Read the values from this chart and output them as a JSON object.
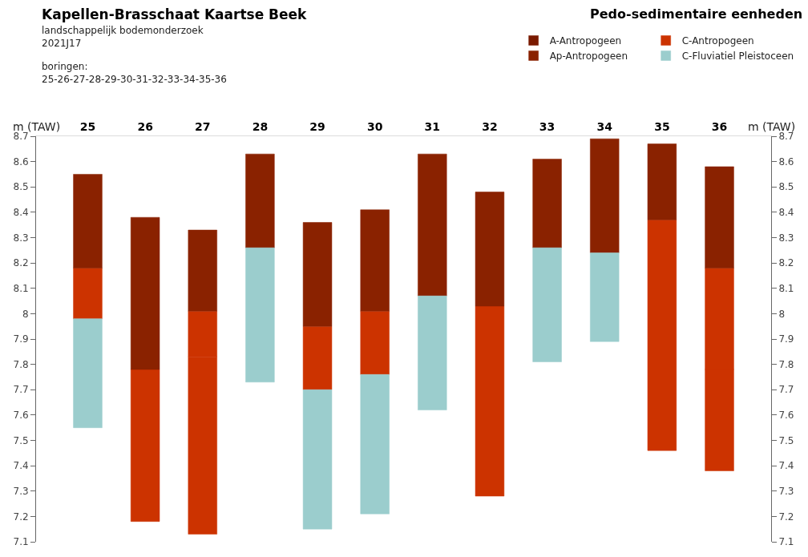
{
  "chart_data": {
    "type": "bar",
    "title": "Kapellen-Brasschaat Kaartse Beek",
    "subtitle": "landschappelijk bodemonderzoek\n2021J17",
    "annotations": [
      "boringen:\n25-26-27-28-29-30-31-32-33-34-35-36"
    ],
    "legend_title": "Pedo-sedimentaire eenheden",
    "legend": "top right",
    "ylabel": "m (TAW)",
    "y2label": "m (TAW)",
    "categories": [
      "25",
      "26",
      "27",
      "28",
      "29",
      "30",
      "31",
      "32",
      "33",
      "34",
      "35",
      "36"
    ],
    "ylim": [
      7.1,
      8.7
    ],
    "yticks": [
      7.1,
      7.2,
      7.3,
      7.4,
      7.5,
      7.6,
      7.7,
      7.8,
      7.9,
      8,
      8.1,
      8.2,
      8.3,
      8.4,
      8.5,
      8.6,
      8.7
    ],
    "y2lim": [
      7.1,
      8.7
    ],
    "y2ticks": [
      7.1,
      7.2,
      7.3,
      7.4,
      7.5,
      7.6,
      7.7,
      7.8,
      7.9,
      8,
      8.1,
      8.2,
      8.3,
      8.4,
      8.5,
      8.6,
      8.7
    ],
    "series": [
      {
        "name": "A-Antropogeen",
        "color": "#7a1a00",
        "values": [
          null,
          null,
          null,
          null,
          null,
          null,
          null,
          null,
          null,
          null,
          null,
          null
        ],
        "base": [
          null,
          null,
          null,
          null,
          null,
          null,
          null,
          null,
          null,
          null,
          null,
          null
        ]
      },
      {
        "name": "C-Antropogeen",
        "color": "#cc3300",
        "values": [
          0.2,
          0.6,
          0.18,
          null,
          0.25,
          0.25,
          null,
          0.75,
          null,
          null,
          0.91,
          0.4
        ],
        "base": [
          7.98,
          7.18,
          7.83,
          null,
          7.7,
          7.76,
          null,
          7.28,
          null,
          null,
          7.46,
          7.78
        ]
      },
      {
        "name": "Ap-Antropogeen",
        "color": "#8a2200",
        "values": [
          0.37,
          0.6,
          0.32,
          0.37,
          0.41,
          0.4,
          0.56,
          0.45,
          0.35,
          0.45,
          0.3,
          0.4
        ],
        "base": [
          8.18,
          7.78,
          8.01,
          8.26,
          7.95,
          8.01,
          8.07,
          8.03,
          8.26,
          8.24,
          8.37,
          8.18
        ]
      },
      {
        "name": "C-Fluviatiel Pleistoceen",
        "color": "#9bcdcd",
        "values": [
          0.43,
          null,
          null,
          0.53,
          0.55,
          0.55,
          0.45,
          null,
          0.45,
          0.35,
          null,
          null
        ],
        "base": [
          7.55,
          null,
          null,
          7.73,
          7.15,
          7.21,
          7.62,
          null,
          7.81,
          7.89,
          null,
          null
        ]
      },
      {
        "color": "#cc3300",
        "values": [
          null,
          null,
          0.7,
          null,
          null,
          null,
          null,
          null,
          null,
          null,
          null,
          0.4
        ],
        "base": [
          null,
          null,
          7.13,
          null,
          null,
          null,
          null,
          null,
          null,
          null,
          null,
          7.38
        ]
      }
    ]
  }
}
